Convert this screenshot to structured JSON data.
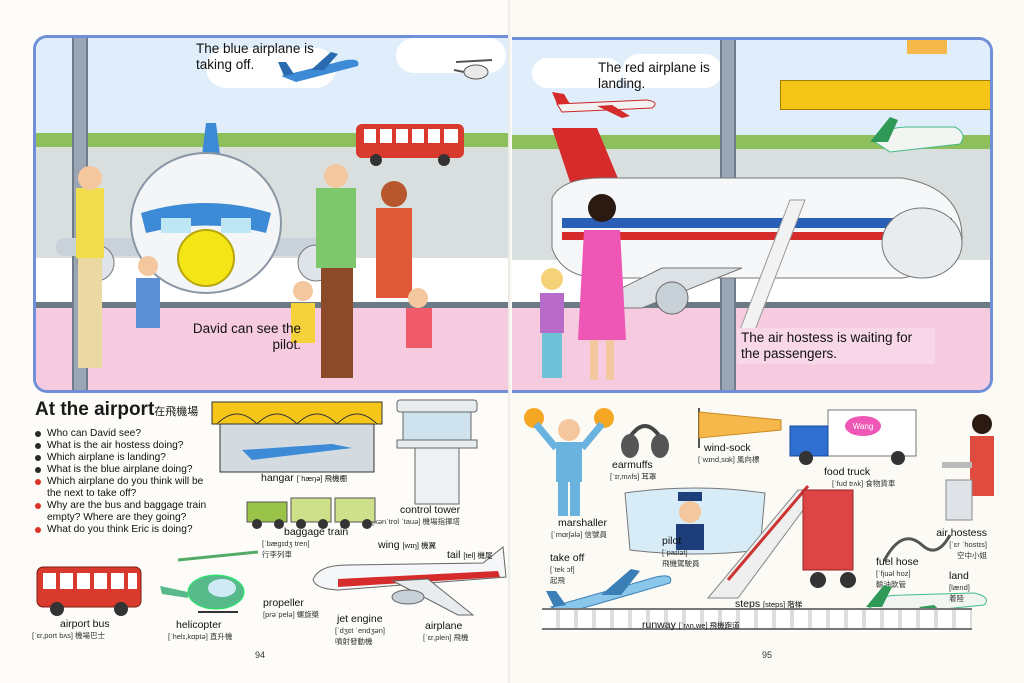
{
  "left_page": {
    "scene_captions": {
      "blue_airplane": "The blue airplane is taking off.",
      "david": "David can see the pilot."
    },
    "section_title": "At the airport",
    "section_title_cn": "在飛機場",
    "questions": [
      {
        "text": "Who can David see?",
        "color": "black"
      },
      {
        "text": "What is the air hostess doing?",
        "color": "black"
      },
      {
        "text": "Which airplane is landing?",
        "color": "black"
      },
      {
        "text": "What is the blue airplane doing?",
        "color": "black"
      },
      {
        "text": "Which airplane do you think will be the next to take off?",
        "color": "red"
      },
      {
        "text": "Why are the bus and baggage train empty? Where are they going?",
        "color": "red"
      },
      {
        "text": "What do you think Eric is doing?",
        "color": "red"
      }
    ],
    "vocab": {
      "hangar": {
        "word": "hangar",
        "phon": "[ˈhæŋə] 飛機棚"
      },
      "control_tower": {
        "word": "control tower",
        "phon": "[kənˈtrol ˈtauə] 機場指揮塔"
      },
      "baggage_train": {
        "word": "baggage train",
        "phon": "[ˈbægɪdʒ tren]",
        "cn": "行李列車"
      },
      "wing": {
        "word": "wing",
        "phon": "[wɪŋ] 機翼"
      },
      "tail": {
        "word": "tail",
        "phon": "[tel] 機尾"
      },
      "airport_bus": {
        "word": "airport bus",
        "phon": "[ˈɛr,port bʌs] 機場巴士"
      },
      "helicopter": {
        "word": "helicopter",
        "phon": "[ˈhelɪ,kɑptə] 直升機"
      },
      "propeller": {
        "word": "propeller",
        "phon": "[prəˈpelə] 螺旋槳"
      },
      "jet_engine": {
        "word": "jet engine",
        "phon": "[ˈdʒɛt ˈendʒən]",
        "cn": "噴射發動機"
      },
      "airplane": {
        "word": "airplane",
        "phon": "[ˈɛr,plen] 飛機"
      }
    },
    "page_number": "94"
  },
  "right_page": {
    "scene_captions": {
      "red_airplane": "The red airplane is landing.",
      "hostess": "The air hostess is waiting for the passengers."
    },
    "vocab": {
      "marshaller": {
        "word": "marshaller",
        "phon": "[ˈmɑrʃələ] 信號員"
      },
      "earmuffs": {
        "word": "earmuffs",
        "phon": "[ˈɪr,mʌfs] 耳罩"
      },
      "wind_sock": {
        "word": "wind-sock",
        "phon": "[ˈwɪnd,sɑk] 風向標"
      },
      "food_truck": {
        "word": "food truck",
        "phon": "[ˈfud trʌk] 食物貨車"
      },
      "pilot": {
        "word": "pilot",
        "phon": "[ˈpaɪlət]",
        "cn": "飛機駕駛員"
      },
      "take_off": {
        "word": "take off",
        "phon": "[ˈtek ɔf]",
        "cn": "起飛"
      },
      "air_hostess": {
        "word": "air hostess",
        "phon": "[ˈɛr ˈhostɪs]",
        "cn": "空中小姐"
      },
      "fuel_hose": {
        "word": "fuel hose",
        "phon": "[ˈfjuəl hoz]",
        "cn": "輸油軟管"
      },
      "land": {
        "word": "land",
        "phon": "[lænd]",
        "cn": "着陸"
      },
      "steps": {
        "word": "steps",
        "phon": "[steps] 階梯"
      },
      "runway": {
        "word": "runway",
        "phon": "[ˈrʌn,we] 飛機跑道"
      }
    },
    "truck_logo": "Wang",
    "page_number": "95"
  },
  "colors": {
    "scene_border": "#6f8fd8",
    "sky": "#dfeefa",
    "tarmac": "#d9dfdf",
    "floor": "#f6cbe0",
    "red_question_bullet": "#d9342b",
    "hangar_yellow": "#f5c518",
    "plane_blue": "#3d8ad6",
    "plane_red": "#d62b2b"
  }
}
